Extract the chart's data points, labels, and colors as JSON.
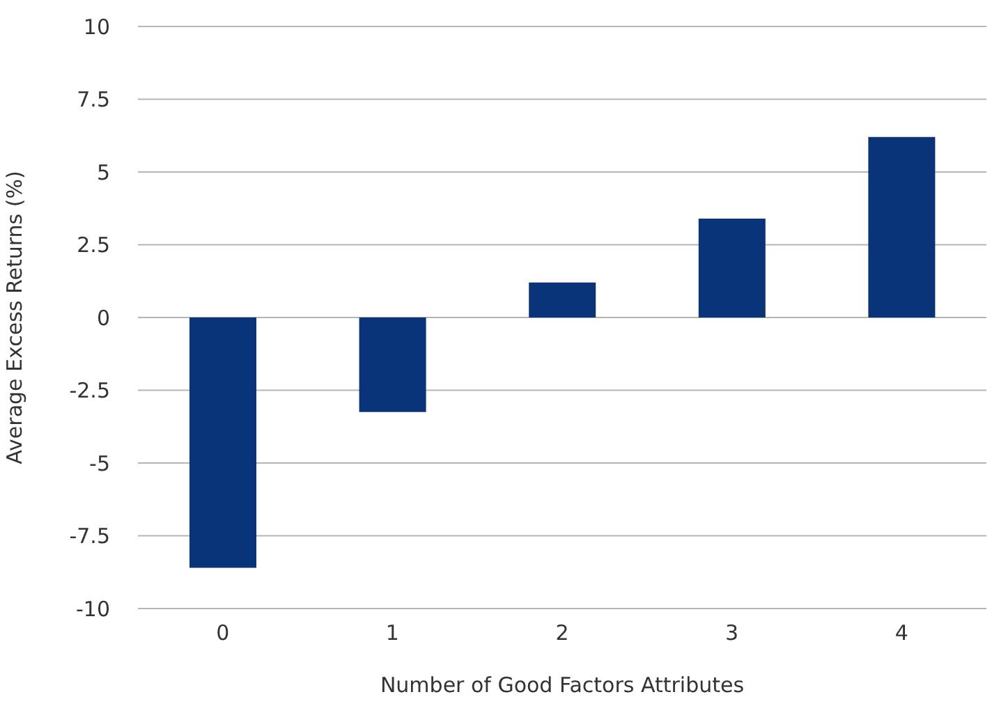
{
  "chart_data": {
    "type": "bar",
    "xlabel": "Number of Good Factors Attributes",
    "ylabel": "Average Excess Returns (%)",
    "categories": [
      "0",
      "1",
      "2",
      "3",
      "4"
    ],
    "values": [
      -8.6,
      -3.25,
      1.2,
      3.4,
      6.2
    ],
    "color": "#0a347a",
    "ylim": [
      -10,
      10
    ],
    "yticks": [
      -10,
      -7.5,
      -5,
      -2.5,
      0,
      2.5,
      5,
      7.5,
      10
    ],
    "grid": "y"
  }
}
